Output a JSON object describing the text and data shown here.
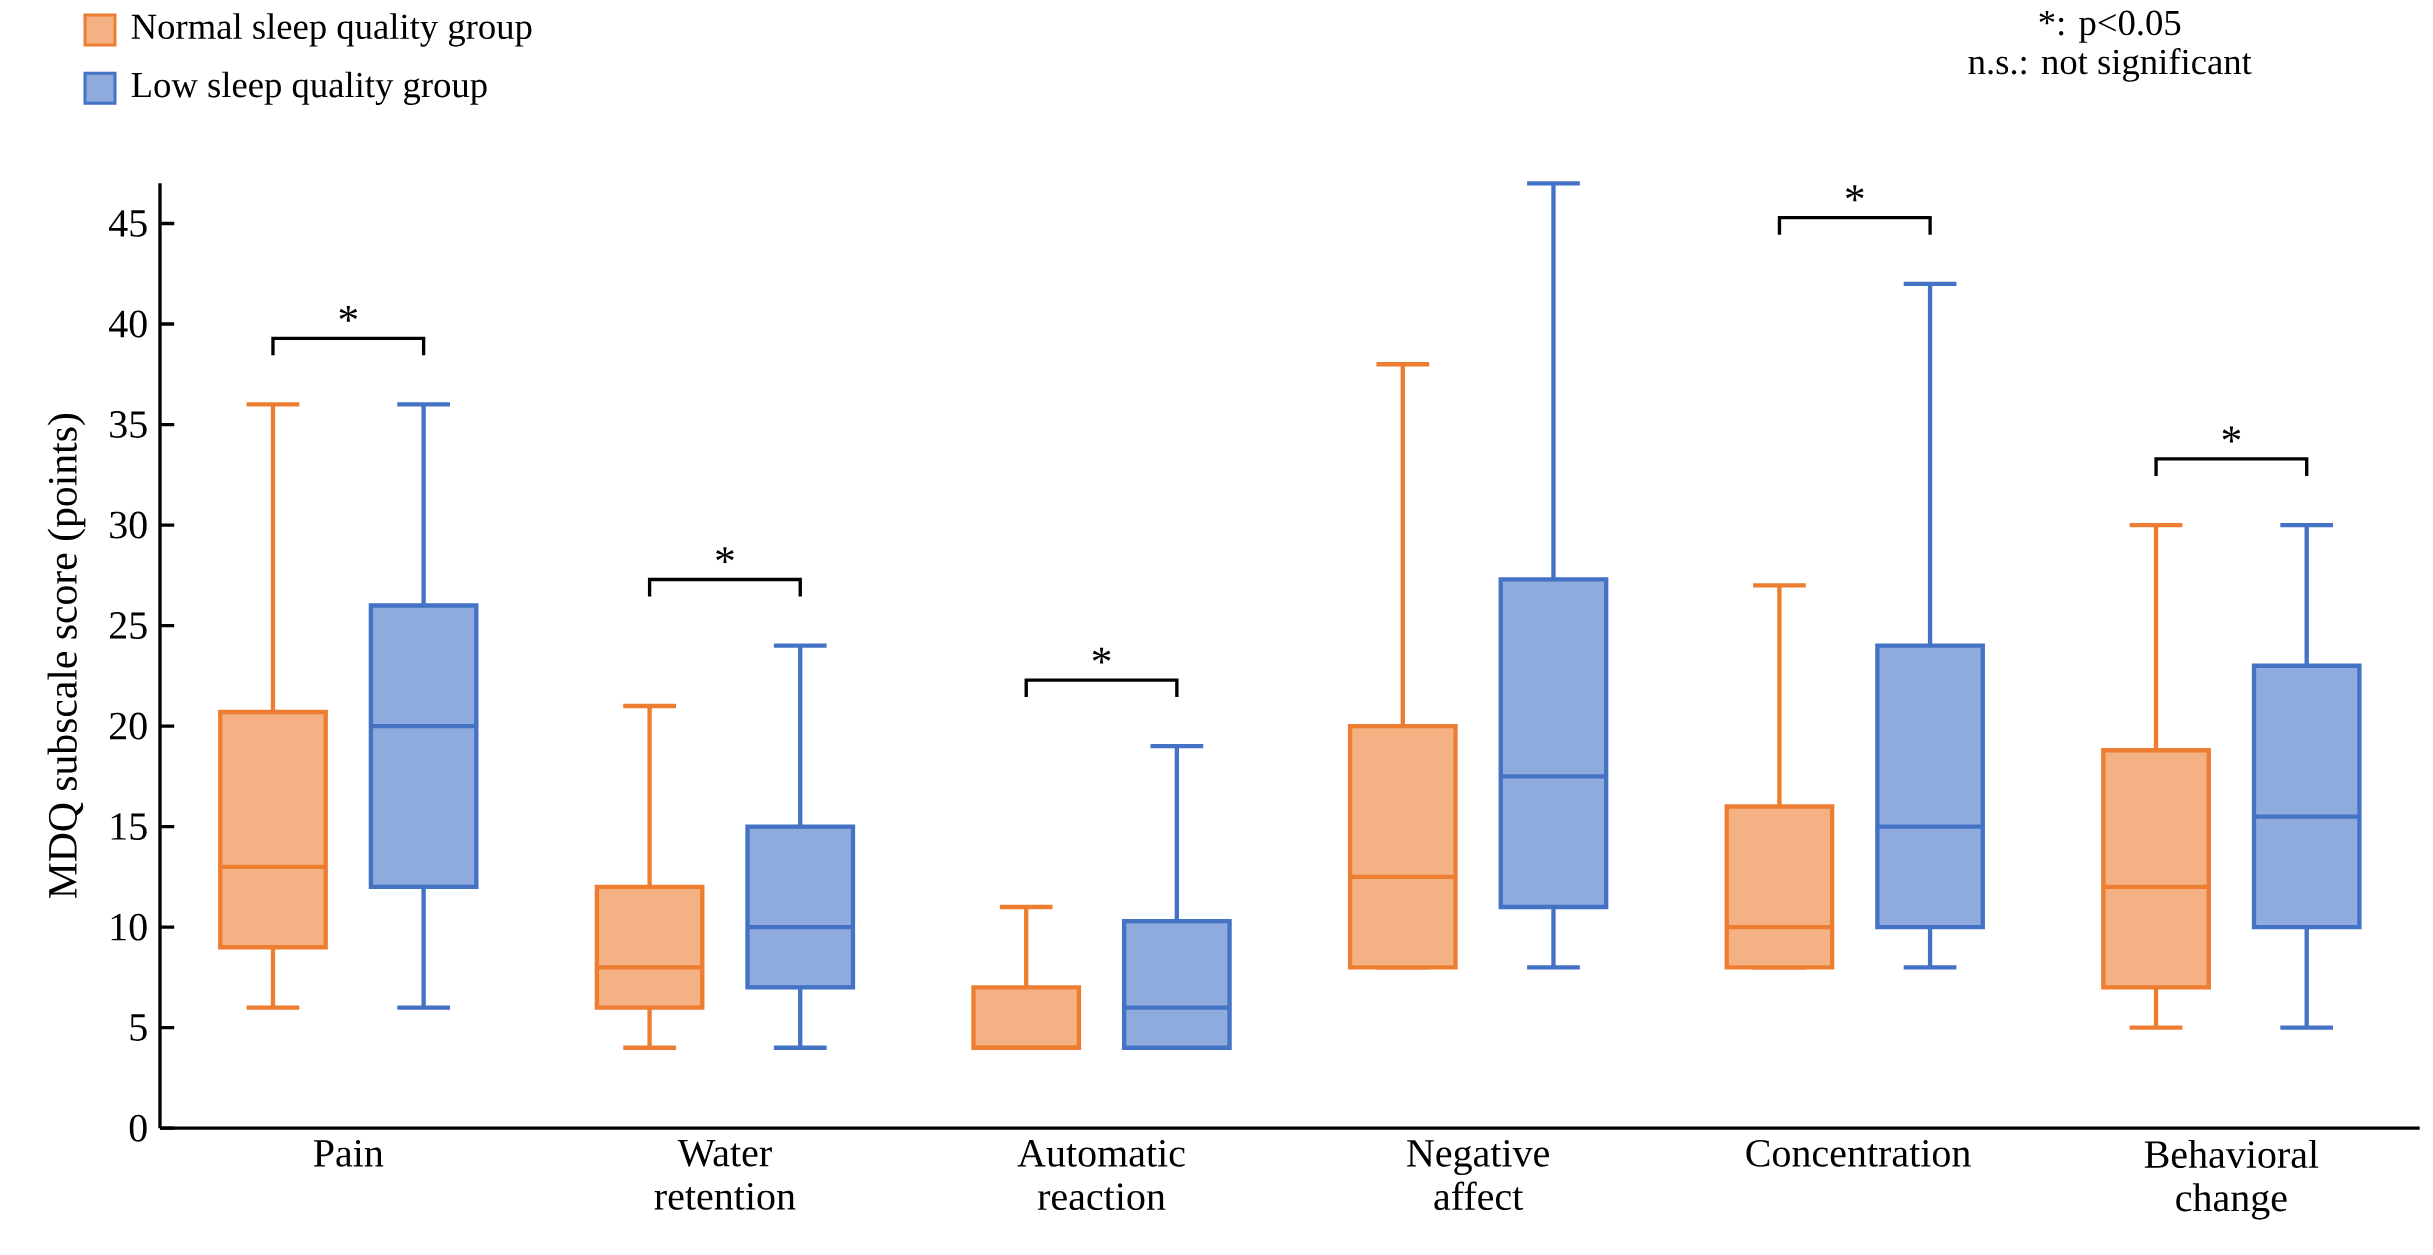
{
  "chart_data": {
    "type": "box",
    "ylabel": "MDQ subscale score (points)",
    "categories": [
      "Pain",
      "Water retention",
      "Automatic reaction",
      "Negative affect",
      "Concentration",
      "Behavioral change"
    ],
    "series": [
      {
        "name": "Normal sleep quality group",
        "color": "#ed7d31",
        "boxes": [
          {
            "low": 6,
            "q1": 9,
            "median": 13,
            "q3": 20.7,
            "high": 36
          },
          {
            "low": 4,
            "q1": 6,
            "median": 8,
            "q3": 12,
            "high": 21
          },
          {
            "low": 4,
            "q1": 4,
            "median": 4,
            "q3": 7,
            "high": 11
          },
          {
            "low": 8,
            "q1": 8,
            "median": 12.5,
            "q3": 20,
            "high": 38
          },
          {
            "low": 8,
            "q1": 8,
            "median": 10,
            "q3": 16,
            "high": 27
          },
          {
            "low": 5,
            "q1": 7,
            "median": 12,
            "q3": 18.8,
            "high": 30
          }
        ]
      },
      {
        "name": "Low sleep quality group",
        "color": "#4472c4",
        "boxes": [
          {
            "low": 6,
            "q1": 12,
            "median": 20,
            "q3": 26,
            "high": 36
          },
          {
            "low": 4,
            "q1": 7,
            "median": 10,
            "q3": 15,
            "high": 24
          },
          {
            "low": 4,
            "q1": 4,
            "median": 6,
            "q3": 10.3,
            "high": 19
          },
          {
            "low": 8,
            "q1": 11,
            "median": 17.5,
            "q3": 27.3,
            "high": 47
          },
          {
            "low": 8,
            "q1": 10,
            "median": 15,
            "q3": 24,
            "high": 42
          },
          {
            "low": 5,
            "q1": 10,
            "median": 15.5,
            "q3": 23,
            "high": 30
          }
        ]
      }
    ],
    "ylim": [
      0,
      47
    ],
    "yticks": [
      0,
      5,
      10,
      15,
      20,
      25,
      30,
      35,
      40,
      45
    ],
    "legend": "top left",
    "annotations": [
      "*: p<0.05",
      "n.s.: not significant",
      "*",
      "*",
      "*",
      "*",
      "*"
    ]
  }
}
